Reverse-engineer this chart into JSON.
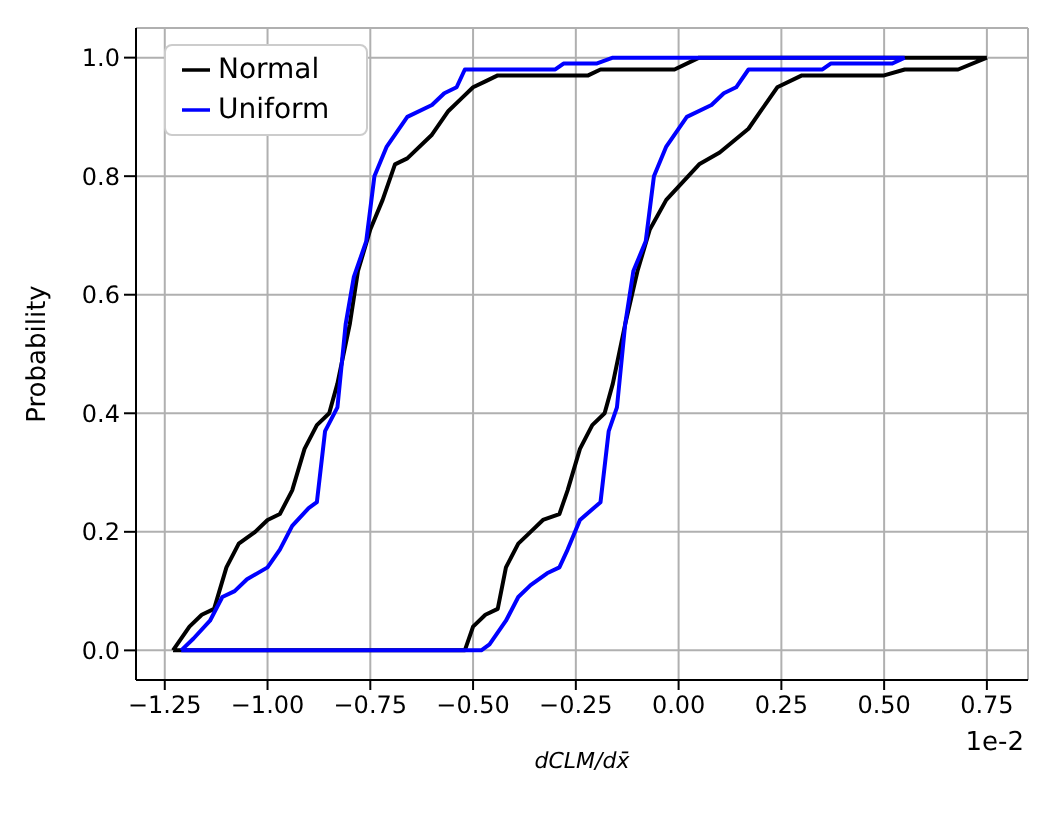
{
  "chart_data": {
    "type": "line",
    "ylabel": "Probability",
    "xlabel": "dCLM/dx̄",
    "annotations": [
      "1e-2"
    ],
    "xlim": [
      -1.32,
      0.85
    ],
    "xticks": [
      {
        "value": -1.25,
        "label": "−1.25"
      },
      {
        "value": -1,
        "label": "−1.00"
      },
      {
        "value": -0.75,
        "label": "−0.75"
      },
      {
        "value": -0.5,
        "label": "−0.50"
      },
      {
        "value": -0.25,
        "label": "−0.25"
      },
      {
        "value": 0,
        "label": "0.00"
      },
      {
        "value": 0.25,
        "label": "0.25"
      },
      {
        "value": 0.5,
        "label": "0.50"
      },
      {
        "value": 0.75,
        "label": "0.75"
      }
    ],
    "ylim": [
      -0.05,
      1.05
    ],
    "yticks": [
      {
        "value": 0,
        "label": "0.0"
      },
      {
        "value": 0.2,
        "label": "0.2"
      },
      {
        "value": 0.4,
        "label": "0.4"
      },
      {
        "value": 0.6,
        "label": "0.6"
      },
      {
        "value": 0.8,
        "label": "0.8"
      },
      {
        "value": 1,
        "label": "1.0"
      }
    ],
    "grid": true,
    "legend": "top left",
    "marker": "none",
    "line_style": "solid",
    "series": [
      {
        "name": "Normal",
        "color": "#000000",
        "x": [
          -1.23,
          -1.19,
          -1.16,
          -1.13,
          -1.1,
          -1.07,
          -1.03,
          -1,
          -0.97,
          -0.94,
          -0.91,
          -0.88,
          -0.85,
          -0.83,
          -0.8,
          -0.78,
          -0.75,
          -0.72,
          -0.69,
          -0.66,
          -0.6,
          -0.56,
          -0.53,
          -0.5,
          -0.47,
          -0.44,
          -0.22,
          -0.19,
          -0.01,
          0.05,
          0.75,
          null,
          -1.23,
          -0.52,
          -0.5,
          -0.47,
          -0.44,
          -0.42,
          -0.39,
          -0.36,
          -0.33,
          -0.29,
          -0.27,
          -0.24,
          -0.21,
          -0.18,
          -0.16,
          -0.13,
          -0.1,
          -0.07,
          -0.03,
          0.05,
          0.1,
          0.17,
          0.2,
          0.24,
          0.3,
          0.5,
          0.55,
          0.68,
          0.75
        ],
        "values": [
          0,
          0.04,
          0.06,
          0.07,
          0.14,
          0.18,
          0.2,
          0.22,
          0.23,
          0.27,
          0.34,
          0.38,
          0.4,
          0.45,
          0.55,
          0.64,
          0.71,
          0.76,
          0.82,
          0.83,
          0.87,
          0.91,
          0.93,
          0.95,
          0.96,
          0.97,
          0.97,
          0.98,
          0.98,
          1,
          1,
          null,
          0,
          0,
          0.04,
          0.06,
          0.07,
          0.14,
          0.18,
          0.2,
          0.22,
          0.23,
          0.27,
          0.34,
          0.38,
          0.4,
          0.45,
          0.55,
          0.64,
          0.71,
          0.76,
          0.82,
          0.84,
          0.88,
          0.91,
          0.95,
          0.97,
          0.97,
          0.98,
          0.98,
          1
        ]
      },
      {
        "name": "Uniform",
        "color": "#0000ff",
        "x": [
          -1.21,
          -1.18,
          -1.14,
          -1.11,
          -1.08,
          -1.05,
          -1,
          -0.97,
          -0.94,
          -0.9,
          -0.88,
          -0.86,
          -0.83,
          -0.81,
          -0.79,
          -0.76,
          -0.74,
          -0.71,
          -0.66,
          -0.6,
          -0.57,
          -0.54,
          -0.52,
          -0.3,
          -0.28,
          -0.2,
          -0.16,
          0.55,
          null,
          -1.21,
          -0.48,
          -0.46,
          -0.42,
          -0.39,
          -0.36,
          -0.32,
          -0.29,
          -0.27,
          -0.24,
          -0.19,
          -0.17,
          -0.15,
          -0.13,
          -0.11,
          -0.08,
          -0.06,
          -0.03,
          0.02,
          0.08,
          0.11,
          0.14,
          0.17,
          0.35,
          0.37,
          0.52,
          0.55
        ],
        "values": [
          0,
          0.02,
          0.05,
          0.09,
          0.1,
          0.12,
          0.14,
          0.17,
          0.21,
          0.24,
          0.25,
          0.37,
          0.41,
          0.55,
          0.63,
          0.69,
          0.8,
          0.85,
          0.9,
          0.92,
          0.94,
          0.95,
          0.98,
          0.98,
          0.99,
          0.99,
          1,
          1,
          null,
          0,
          0,
          0.01,
          0.05,
          0.09,
          0.11,
          0.13,
          0.14,
          0.17,
          0.22,
          0.25,
          0.37,
          0.41,
          0.55,
          0.64,
          0.69,
          0.8,
          0.85,
          0.9,
          0.92,
          0.94,
          0.95,
          0.98,
          0.98,
          0.99,
          0.99,
          1
        ]
      }
    ]
  }
}
